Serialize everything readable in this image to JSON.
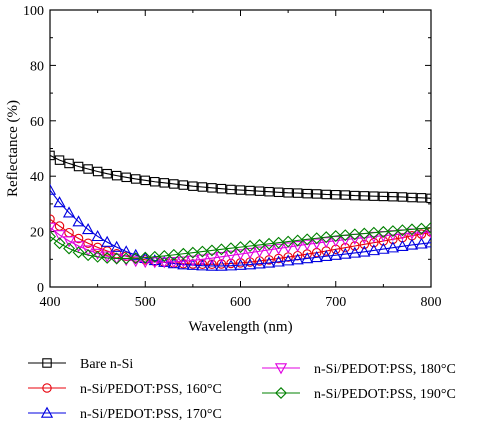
{
  "chart_data": {
    "type": "line",
    "xlabel": "Wavelength (nm)",
    "ylabel": "Reflectance (%)",
    "xlim": [
      400,
      800
    ],
    "ylim": [
      0,
      100
    ],
    "xticks": [
      400,
      500,
      600,
      700,
      800
    ],
    "yticks": [
      0,
      20,
      40,
      60,
      80,
      100
    ],
    "grid": false,
    "legend_position": "below",
    "series": [
      {
        "name": "Bare n-Si",
        "color": "#000000",
        "marker": "square",
        "x": [
          400,
          410,
          420,
          430,
          440,
          450,
          460,
          470,
          480,
          490,
          500,
          510,
          520,
          530,
          540,
          550,
          560,
          570,
          580,
          590,
          600,
          610,
          620,
          630,
          640,
          650,
          660,
          670,
          680,
          690,
          700,
          710,
          720,
          730,
          740,
          750,
          760,
          770,
          780,
          790,
          800
        ],
        "values": [
          47.5,
          45.8,
          44.6,
          43.5,
          42.6,
          41.7,
          40.9,
          40.2,
          39.6,
          39.0,
          38.5,
          38.0,
          37.6,
          37.2,
          36.8,
          36.4,
          36.1,
          35.8,
          35.5,
          35.2,
          35.0,
          34.8,
          34.6,
          34.4,
          34.2,
          34.0,
          33.9,
          33.7,
          33.6,
          33.4,
          33.3,
          33.2,
          33.0,
          32.9,
          32.8,
          32.7,
          32.6,
          32.5,
          32.3,
          32.2,
          32.0
        ]
      },
      {
        "name": "n-Si/PEDOT:PSS, 160°C",
        "color": "#e8000b",
        "marker": "circle",
        "x": [
          400,
          410,
          420,
          430,
          440,
          450,
          460,
          470,
          480,
          490,
          500,
          510,
          520,
          530,
          540,
          550,
          560,
          570,
          580,
          590,
          600,
          610,
          620,
          630,
          640,
          650,
          660,
          670,
          680,
          690,
          700,
          710,
          720,
          730,
          740,
          750,
          760,
          770,
          780,
          790,
          800
        ],
        "values": [
          24.5,
          22.0,
          19.6,
          17.5,
          15.8,
          14.3,
          13.0,
          12.0,
          11.1,
          10.4,
          9.8,
          9.3,
          8.9,
          8.6,
          8.4,
          8.3,
          8.2,
          8.2,
          8.3,
          8.5,
          8.7,
          9.0,
          9.4,
          9.8,
          10.3,
          10.8,
          11.3,
          11.9,
          12.4,
          13.0,
          13.6,
          14.2,
          14.8,
          15.4,
          16.0,
          16.6,
          17.2,
          17.8,
          18.5,
          19.1,
          19.8
        ]
      },
      {
        "name": "n-Si/PEDOT:PSS, 170°C",
        "color": "#0000e0",
        "marker": "triangle-up",
        "x": [
          400,
          410,
          420,
          430,
          440,
          450,
          460,
          470,
          480,
          490,
          500,
          510,
          520,
          530,
          540,
          550,
          560,
          570,
          580,
          590,
          600,
          610,
          620,
          630,
          640,
          650,
          660,
          670,
          680,
          690,
          700,
          710,
          720,
          730,
          740,
          750,
          760,
          770,
          780,
          790,
          800
        ],
        "values": [
          35.0,
          30.5,
          26.8,
          23.6,
          20.8,
          18.3,
          16.2,
          14.4,
          12.8,
          11.5,
          10.4,
          9.6,
          9.0,
          8.5,
          8.1,
          7.9,
          7.7,
          7.6,
          7.6,
          7.7,
          7.9,
          8.1,
          8.4,
          8.7,
          9.1,
          9.5,
          9.9,
          10.3,
          10.7,
          11.1,
          11.5,
          11.9,
          12.3,
          12.7,
          13.2,
          13.7,
          14.2,
          14.7,
          15.2,
          15.6,
          16.0
        ]
      },
      {
        "name": "n-Si/PEDOT:PSS, 180°C",
        "color": "#e000e0",
        "marker": "triangle-down",
        "x": [
          400,
          410,
          420,
          430,
          440,
          450,
          460,
          470,
          480,
          490,
          500,
          510,
          520,
          530,
          540,
          550,
          560,
          570,
          580,
          590,
          600,
          610,
          620,
          630,
          640,
          650,
          660,
          670,
          680,
          690,
          700,
          710,
          720,
          730,
          740,
          750,
          760,
          770,
          780,
          790,
          800
        ],
        "values": [
          21.5,
          18.8,
          16.6,
          14.8,
          13.3,
          12.1,
          11.1,
          10.3,
          9.8,
          9.4,
          9.1,
          9.0,
          9.0,
          9.1,
          9.3,
          9.6,
          10.0,
          10.4,
          10.9,
          11.4,
          11.9,
          12.4,
          12.9,
          13.4,
          13.9,
          14.4,
          14.9,
          15.4,
          15.8,
          16.3,
          16.7,
          17.1,
          17.5,
          17.8,
          18.2,
          18.5,
          18.8,
          19.1,
          19.4,
          19.6,
          19.9
        ]
      },
      {
        "name": "n-Si/PEDOT:PSS, 190°C",
        "color": "#008000",
        "marker": "diamond",
        "x": [
          400,
          410,
          420,
          430,
          440,
          450,
          460,
          470,
          480,
          490,
          500,
          510,
          520,
          530,
          540,
          550,
          560,
          570,
          580,
          590,
          600,
          610,
          620,
          630,
          640,
          650,
          660,
          670,
          680,
          690,
          700,
          710,
          720,
          730,
          740,
          750,
          760,
          770,
          780,
          790,
          800
        ],
        "values": [
          18.2,
          15.8,
          13.9,
          12.5,
          11.5,
          10.9,
          10.5,
          10.3,
          10.3,
          10.4,
          10.6,
          10.9,
          11.2,
          11.6,
          12.0,
          12.4,
          12.8,
          13.2,
          13.6,
          14.0,
          14.4,
          14.8,
          15.2,
          15.6,
          16.0,
          16.4,
          16.8,
          17.2,
          17.6,
          18.0,
          18.4,
          18.7,
          19.0,
          19.3,
          19.6,
          19.9,
          20.2,
          20.5,
          20.8,
          21.1,
          21.4
        ]
      }
    ]
  }
}
